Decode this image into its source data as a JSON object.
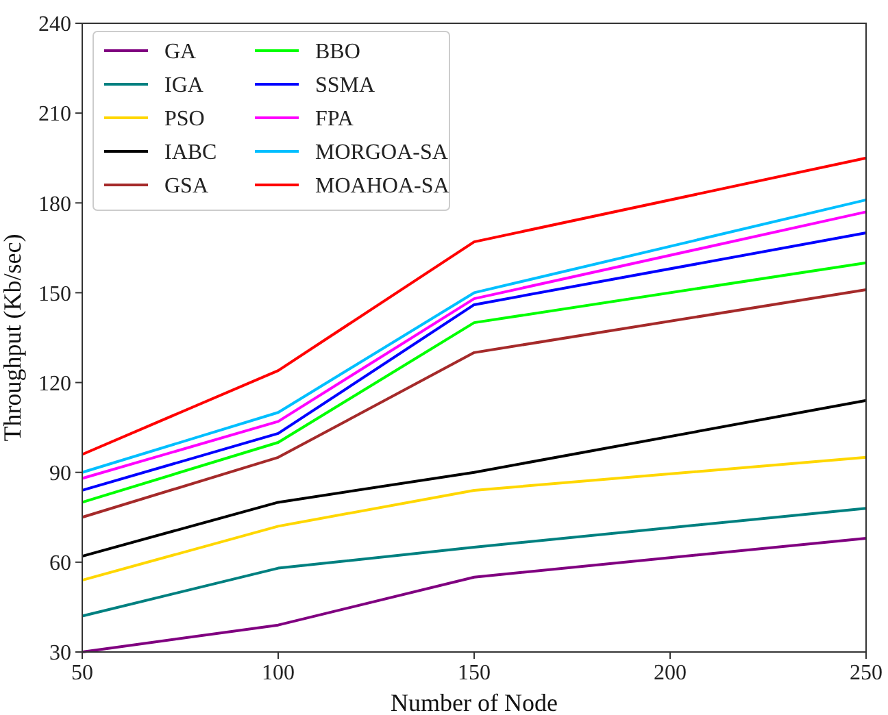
{
  "chart_data": {
    "type": "line",
    "xlabel": "Number of Node",
    "ylabel": "Throughput (Kb/sec)",
    "x": [
      50,
      100,
      150,
      250
    ],
    "xlim": [
      50,
      250
    ],
    "xticks": [
      50,
      100,
      150,
      200,
      250
    ],
    "ylim": [
      30,
      240
    ],
    "yticks": [
      30,
      60,
      90,
      120,
      150,
      180,
      210,
      240
    ],
    "legend": "top left",
    "series": [
      {
        "name": "GA",
        "color": "#800080",
        "values": [
          30,
          39,
          55,
          68
        ]
      },
      {
        "name": "IGA",
        "color": "#008080",
        "values": [
          42,
          58,
          65,
          78
        ]
      },
      {
        "name": "PSO",
        "color": "#ffd700",
        "values": [
          54,
          72,
          84,
          95
        ]
      },
      {
        "name": "IABC",
        "color": "#000000",
        "values": [
          62,
          80,
          90,
          114
        ]
      },
      {
        "name": "GSA",
        "color": "#a52a2a",
        "values": [
          75,
          95,
          130,
          151
        ]
      },
      {
        "name": "BBO",
        "color": "#00ff00",
        "values": [
          80,
          100,
          140,
          160
        ]
      },
      {
        "name": "SSMA",
        "color": "#0000ff",
        "values": [
          84,
          103,
          146,
          170
        ]
      },
      {
        "name": "FPA",
        "color": "#ff00ff",
        "values": [
          88,
          107,
          148,
          177
        ]
      },
      {
        "name": "MORGOA-SA",
        "color": "#00bfff",
        "values": [
          90,
          110,
          150,
          181
        ]
      },
      {
        "name": "MOAHOA-SA",
        "color": "#ff0000",
        "values": [
          96,
          124,
          167,
          195
        ]
      }
    ]
  }
}
